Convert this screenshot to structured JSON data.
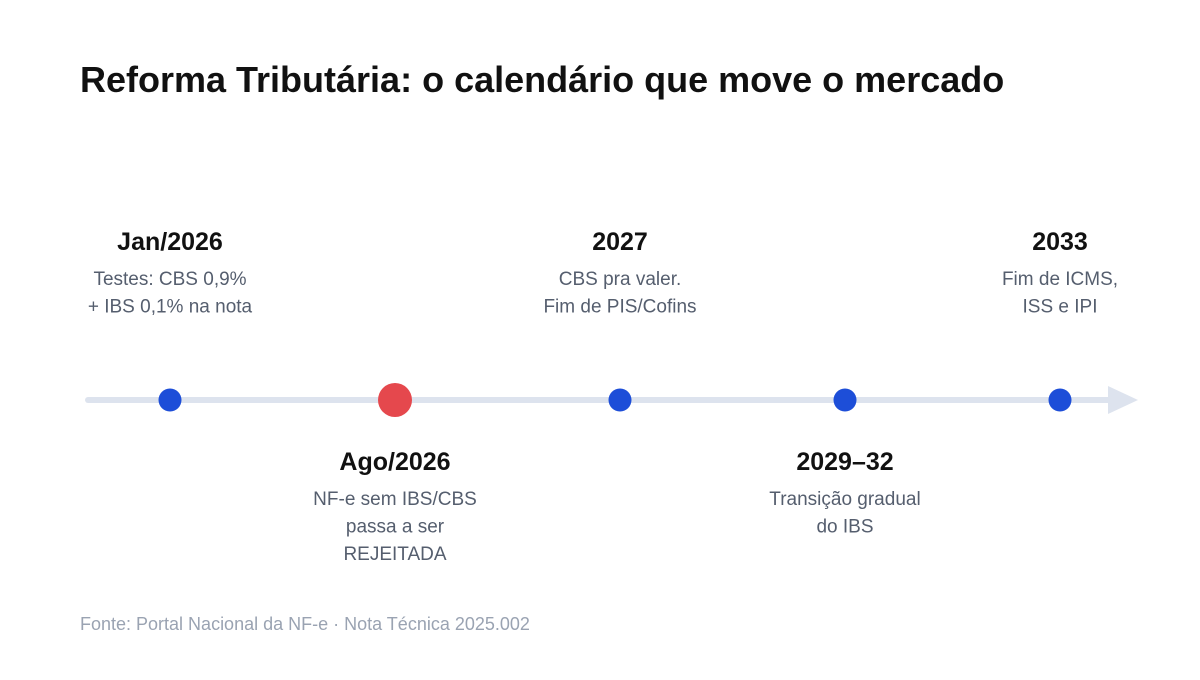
{
  "header": {
    "title": "Reforma Tributária: o calendário que move o mercado"
  },
  "nodes": [
    {
      "date": "Jan/2026",
      "lines": [
        "Testes: CBS 0,9%",
        "+ IBS 0,1% na nota"
      ],
      "color": "#1d4ed8"
    },
    {
      "date": "Ago/2026",
      "lines": [
        "NF-e sem IBS/CBS",
        "passa a ser",
        "REJEITADA"
      ],
      "color": "#e5484d"
    },
    {
      "date": "2027",
      "lines": [
        "CBS pra valer.",
        "Fim de PIS/Cofins"
      ],
      "color": "#1d4ed8"
    },
    {
      "date": "2029–32",
      "lines": [
        "Transição gradual",
        "do IBS"
      ],
      "color": "#1d4ed8"
    },
    {
      "date": "2033",
      "lines": [
        "Fim de ICMS,",
        "ISS e IPI"
      ],
      "color": "#1d4ed8"
    }
  ],
  "footer": {
    "source": "Fonte: Portal Nacional da NF-e · Nota Técnica 2025.002"
  }
}
